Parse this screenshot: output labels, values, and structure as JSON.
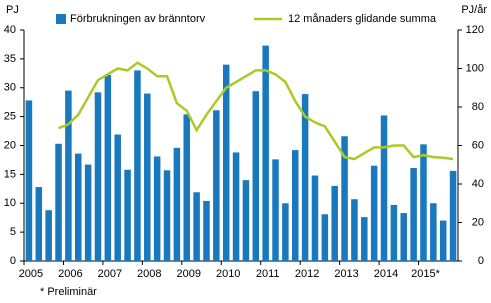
{
  "chart_data": {
    "type": "bar",
    "y_label": "PJ",
    "y2_label": "PJ/år",
    "footnote": "* Preliminär",
    "categories": [
      "2005",
      null,
      null,
      null,
      "2006",
      null,
      null,
      null,
      "2007",
      null,
      null,
      null,
      "2008",
      null,
      null,
      null,
      "2009",
      null,
      null,
      null,
      "2010",
      null,
      null,
      null,
      "2011",
      null,
      null,
      null,
      "2012",
      null,
      null,
      null,
      "2013",
      null,
      null,
      null,
      "2014",
      null,
      null,
      null,
      "2015*",
      null,
      null,
      null
    ],
    "series": [
      {
        "name": "Förbrukningen av bränntorv",
        "type": "bar",
        "color": "#1a78be",
        "values": [
          27.8,
          12.8,
          8.8,
          20.3,
          29.5,
          18.6,
          16.7,
          29.2,
          32.2,
          21.9,
          15.8,
          33.0,
          29.0,
          18.1,
          15.7,
          19.6,
          25.4,
          11.9,
          10.4,
          26.1,
          34.0,
          18.8,
          14.0,
          29.4,
          37.3,
          17.6,
          10.0,
          19.2,
          28.9,
          14.8,
          8.1,
          13.0,
          21.6,
          10.7,
          7.6,
          16.5,
          25.2,
          9.7,
          8.3,
          16.1,
          20.2,
          10.0,
          7.0,
          15.6
        ]
      },
      {
        "name": "12 månaders glidande summa",
        "type": "line",
        "axis": "y2",
        "color": "#a9cb26",
        "values": [
          null,
          null,
          null,
          69,
          71,
          76,
          85,
          94,
          97,
          100,
          99,
          103,
          100,
          96,
          96,
          82,
          78,
          68,
          76,
          83,
          90,
          93,
          96,
          99,
          99,
          97,
          93,
          83,
          75,
          72,
          70,
          62,
          54,
          53,
          56,
          59,
          59,
          60,
          60,
          54,
          55,
          54,
          53.6,
          53
        ]
      }
    ],
    "ylim": [
      0,
      40
    ],
    "yticks": [
      0,
      5,
      10,
      15,
      20,
      25,
      30,
      35,
      40
    ],
    "y2lim": [
      0,
      120
    ],
    "y2ticks": [
      0,
      20,
      40,
      60,
      80,
      100,
      120
    ],
    "grid": false
  }
}
